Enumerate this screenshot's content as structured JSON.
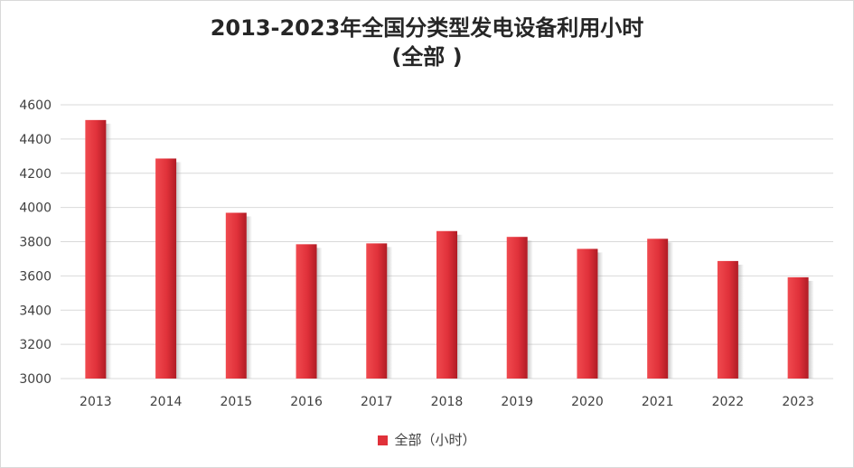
{
  "chart_data": {
    "type": "bar",
    "title": "2013-2023年全国分类型发电设备利用小时",
    "subtitle": "(全部 )",
    "categories": [
      "2013",
      "2014",
      "2015",
      "2016",
      "2017",
      "2018",
      "2019",
      "2020",
      "2021",
      "2022",
      "2023"
    ],
    "series": [
      {
        "name": "全部（小时）",
        "values": [
          4511,
          4286,
          3969,
          3785,
          3790,
          3862,
          3828,
          3758,
          3817,
          3687,
          3592
        ],
        "color": "#e0313a"
      }
    ],
    "ylim": [
      3000,
      4600
    ],
    "yticks": [
      3000,
      3200,
      3400,
      3600,
      3800,
      4000,
      4200,
      4400,
      4600
    ],
    "grid": true,
    "legend_position": "bottom"
  }
}
